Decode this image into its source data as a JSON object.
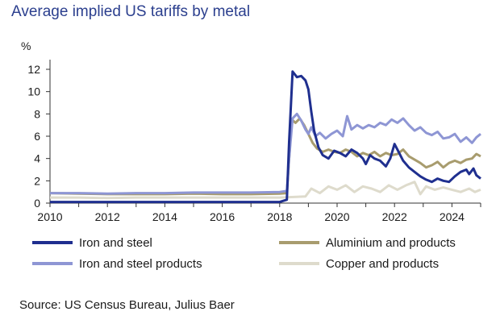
{
  "title": "Average implied US tariffs by metal",
  "source": "Source: US Census Bureau, Julius Baer",
  "chart_data": {
    "type": "line",
    "ylabel": "%",
    "xlim": [
      2010,
      2025
    ],
    "ylim": [
      0,
      12
    ],
    "x_ticks": [
      2010,
      2012,
      2014,
      2016,
      2018,
      2020,
      2022,
      2024
    ],
    "y_ticks": [
      0,
      2,
      4,
      6,
      8,
      10,
      12
    ],
    "grid": false,
    "legend": "bottom",
    "series": [
      {
        "name": "Iron and steel",
        "color": "#1f2f8f",
        "points": [
          [
            2010,
            0.1
          ],
          [
            2011,
            0.1
          ],
          [
            2012,
            0.1
          ],
          [
            2013,
            0.1
          ],
          [
            2014,
            0.1
          ],
          [
            2015,
            0.1
          ],
          [
            2016,
            0.1
          ],
          [
            2017,
            0.1
          ],
          [
            2018.0,
            0.1
          ],
          [
            2018.25,
            0.3
          ],
          [
            2018.33,
            5.5
          ],
          [
            2018.45,
            11.8
          ],
          [
            2018.6,
            11.3
          ],
          [
            2018.75,
            11.4
          ],
          [
            2018.9,
            11.0
          ],
          [
            2019.0,
            10.2
          ],
          [
            2019.1,
            8.2
          ],
          [
            2019.2,
            6.5
          ],
          [
            2019.35,
            5.0
          ],
          [
            2019.5,
            4.3
          ],
          [
            2019.7,
            4.0
          ],
          [
            2019.9,
            4.7
          ],
          [
            2020.1,
            4.5
          ],
          [
            2020.3,
            4.2
          ],
          [
            2020.5,
            4.8
          ],
          [
            2020.7,
            4.5
          ],
          [
            2020.9,
            4.0
          ],
          [
            2021.0,
            3.5
          ],
          [
            2021.15,
            4.3
          ],
          [
            2021.3,
            4.0
          ],
          [
            2021.5,
            3.8
          ],
          [
            2021.7,
            3.3
          ],
          [
            2021.85,
            4.0
          ],
          [
            2022.0,
            5.3
          ],
          [
            2022.1,
            4.8
          ],
          [
            2022.3,
            3.8
          ],
          [
            2022.5,
            3.2
          ],
          [
            2022.7,
            2.8
          ],
          [
            2022.9,
            2.4
          ],
          [
            2023.1,
            2.1
          ],
          [
            2023.3,
            1.9
          ],
          [
            2023.5,
            2.2
          ],
          [
            2023.7,
            2.0
          ],
          [
            2023.9,
            1.9
          ],
          [
            2024.1,
            2.4
          ],
          [
            2024.3,
            2.8
          ],
          [
            2024.5,
            3.0
          ],
          [
            2024.6,
            2.6
          ],
          [
            2024.75,
            3.1
          ],
          [
            2024.85,
            2.5
          ],
          [
            2025.0,
            2.2
          ]
        ]
      },
      {
        "name": "Aluminium and products",
        "color": "#a89c6e",
        "points": [
          [
            2010,
            0.9
          ],
          [
            2011,
            0.85
          ],
          [
            2012,
            0.8
          ],
          [
            2013,
            0.8
          ],
          [
            2014,
            0.8
          ],
          [
            2015,
            0.85
          ],
          [
            2016,
            0.8
          ],
          [
            2017,
            0.8
          ],
          [
            2018.0,
            0.85
          ],
          [
            2018.25,
            0.9
          ],
          [
            2018.33,
            4.0
          ],
          [
            2018.42,
            7.5
          ],
          [
            2018.55,
            7.2
          ],
          [
            2018.7,
            7.6
          ],
          [
            2018.85,
            7.0
          ],
          [
            2019.0,
            6.2
          ],
          [
            2019.15,
            5.4
          ],
          [
            2019.3,
            4.9
          ],
          [
            2019.5,
            4.6
          ],
          [
            2019.7,
            4.8
          ],
          [
            2019.9,
            4.6
          ],
          [
            2020.1,
            4.5
          ],
          [
            2020.3,
            4.8
          ],
          [
            2020.5,
            4.6
          ],
          [
            2020.7,
            4.2
          ],
          [
            2020.9,
            4.5
          ],
          [
            2021.1,
            4.3
          ],
          [
            2021.3,
            4.6
          ],
          [
            2021.5,
            4.2
          ],
          [
            2021.7,
            4.5
          ],
          [
            2021.9,
            4.3
          ],
          [
            2022.1,
            4.4
          ],
          [
            2022.3,
            4.8
          ],
          [
            2022.5,
            4.2
          ],
          [
            2022.7,
            3.9
          ],
          [
            2022.9,
            3.6
          ],
          [
            2023.1,
            3.2
          ],
          [
            2023.3,
            3.4
          ],
          [
            2023.5,
            3.7
          ],
          [
            2023.7,
            3.2
          ],
          [
            2023.9,
            3.6
          ],
          [
            2024.1,
            3.8
          ],
          [
            2024.3,
            3.6
          ],
          [
            2024.5,
            3.9
          ],
          [
            2024.7,
            4.0
          ],
          [
            2024.85,
            4.4
          ],
          [
            2025.0,
            4.2
          ]
        ]
      },
      {
        "name": "Iron and steel products",
        "color": "#8e96d4",
        "points": [
          [
            2010,
            0.9
          ],
          [
            2011,
            0.9
          ],
          [
            2012,
            0.85
          ],
          [
            2013,
            0.9
          ],
          [
            2014,
            0.9
          ],
          [
            2015,
            0.95
          ],
          [
            2016,
            0.95
          ],
          [
            2017,
            0.95
          ],
          [
            2018.0,
            1.0
          ],
          [
            2018.25,
            1.1
          ],
          [
            2018.33,
            4.0
          ],
          [
            2018.45,
            7.6
          ],
          [
            2018.6,
            8.0
          ],
          [
            2018.75,
            7.4
          ],
          [
            2018.9,
            6.6
          ],
          [
            2019.0,
            6.2
          ],
          [
            2019.1,
            6.8
          ],
          [
            2019.25,
            6.0
          ],
          [
            2019.4,
            6.3
          ],
          [
            2019.6,
            5.8
          ],
          [
            2019.8,
            6.2
          ],
          [
            2020.0,
            6.5
          ],
          [
            2020.2,
            6.0
          ],
          [
            2020.35,
            7.8
          ],
          [
            2020.5,
            6.6
          ],
          [
            2020.7,
            7.0
          ],
          [
            2020.9,
            6.7
          ],
          [
            2021.1,
            7.0
          ],
          [
            2021.3,
            6.8
          ],
          [
            2021.5,
            7.2
          ],
          [
            2021.7,
            7.0
          ],
          [
            2021.9,
            7.5
          ],
          [
            2022.1,
            7.2
          ],
          [
            2022.3,
            7.6
          ],
          [
            2022.5,
            7.0
          ],
          [
            2022.7,
            6.5
          ],
          [
            2022.9,
            6.8
          ],
          [
            2023.1,
            6.3
          ],
          [
            2023.3,
            6.1
          ],
          [
            2023.5,
            6.4
          ],
          [
            2023.7,
            5.8
          ],
          [
            2023.9,
            5.9
          ],
          [
            2024.1,
            6.2
          ],
          [
            2024.3,
            5.5
          ],
          [
            2024.5,
            5.9
          ],
          [
            2024.7,
            5.4
          ],
          [
            2024.85,
            5.9
          ],
          [
            2025.0,
            6.2
          ]
        ]
      },
      {
        "name": "Copper and products",
        "color": "#dedbcc",
        "points": [
          [
            2010,
            0.5
          ],
          [
            2011,
            0.5
          ],
          [
            2012,
            0.45
          ],
          [
            2013,
            0.5
          ],
          [
            2014,
            0.5
          ],
          [
            2015,
            0.5
          ],
          [
            2016,
            0.5
          ],
          [
            2017,
            0.5
          ],
          [
            2018.0,
            0.5
          ],
          [
            2018.5,
            0.55
          ],
          [
            2018.9,
            0.6
          ],
          [
            2019.1,
            1.3
          ],
          [
            2019.4,
            0.9
          ],
          [
            2019.7,
            1.5
          ],
          [
            2020.0,
            1.2
          ],
          [
            2020.3,
            1.6
          ],
          [
            2020.6,
            1.0
          ],
          [
            2020.9,
            1.5
          ],
          [
            2021.2,
            1.3
          ],
          [
            2021.5,
            1.0
          ],
          [
            2021.8,
            1.6
          ],
          [
            2022.1,
            1.2
          ],
          [
            2022.4,
            1.6
          ],
          [
            2022.7,
            1.9
          ],
          [
            2022.9,
            0.8
          ],
          [
            2023.1,
            1.5
          ],
          [
            2023.4,
            1.2
          ],
          [
            2023.7,
            1.4
          ],
          [
            2024.0,
            1.2
          ],
          [
            2024.3,
            1.0
          ],
          [
            2024.6,
            1.3
          ],
          [
            2024.8,
            1.0
          ],
          [
            2025.0,
            1.2
          ]
        ]
      }
    ]
  }
}
